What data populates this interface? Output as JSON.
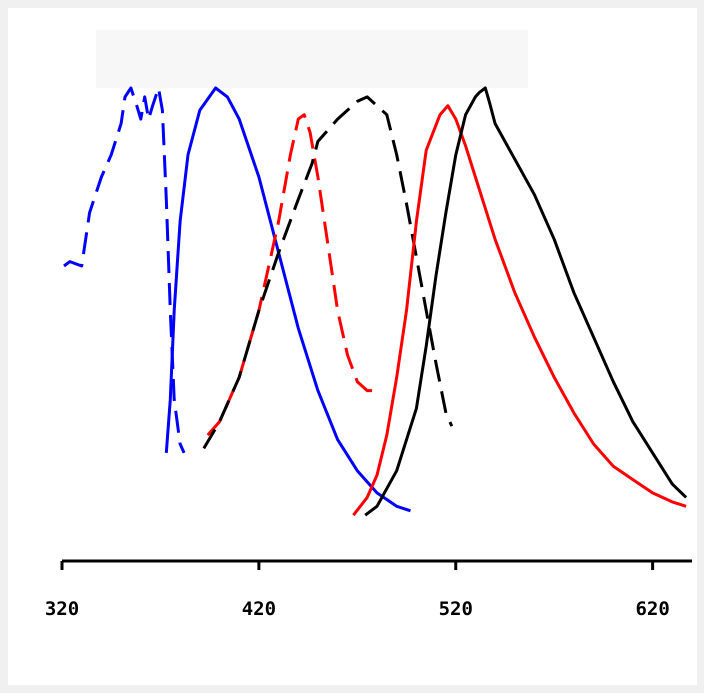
{
  "chart_data": {
    "type": "line",
    "title": "",
    "xlabel": "",
    "ylabel": "",
    "xlim": [
      320,
      640
    ],
    "ylim": [
      0,
      1
    ],
    "grid": false,
    "x_ticks": [
      320,
      420,
      520,
      620
    ],
    "series": [
      {
        "color": "#0000ff",
        "dashed": true,
        "points": [
          [
            321,
            0.6
          ],
          [
            324,
            0.61
          ],
          [
            330,
            0.6
          ],
          [
            334,
            0.72
          ],
          [
            340,
            0.8
          ],
          [
            345,
            0.85
          ],
          [
            350,
            0.92
          ],
          [
            352,
            0.98
          ],
          [
            355,
            1.0
          ],
          [
            358,
            0.96
          ],
          [
            360,
            0.93
          ],
          [
            362,
            0.98
          ],
          [
            364,
            0.93
          ],
          [
            366,
            0.96
          ],
          [
            369,
            1.0
          ],
          [
            371,
            0.95
          ],
          [
            373,
            0.75
          ],
          [
            375,
            0.5
          ],
          [
            377,
            0.3
          ],
          [
            380,
            0.2
          ],
          [
            382,
            0.18
          ]
        ]
      },
      {
        "color": "#0000ff",
        "dashed": false,
        "points": [
          [
            373,
            0.18
          ],
          [
            375,
            0.3
          ],
          [
            377,
            0.5
          ],
          [
            380,
            0.7
          ],
          [
            384,
            0.85
          ],
          [
            390,
            0.95
          ],
          [
            398,
            1.0
          ],
          [
            404,
            0.98
          ],
          [
            410,
            0.93
          ],
          [
            420,
            0.8
          ],
          [
            430,
            0.63
          ],
          [
            440,
            0.46
          ],
          [
            450,
            0.32
          ],
          [
            460,
            0.21
          ],
          [
            470,
            0.14
          ],
          [
            480,
            0.09
          ],
          [
            490,
            0.06
          ],
          [
            497,
            0.05
          ]
        ]
      },
      {
        "color": "#ff0000",
        "dashed": true,
        "points": [
          [
            394,
            0.22
          ],
          [
            400,
            0.25
          ],
          [
            410,
            0.35
          ],
          [
            420,
            0.5
          ],
          [
            430,
            0.7
          ],
          [
            436,
            0.85
          ],
          [
            440,
            0.93
          ],
          [
            443,
            0.94
          ],
          [
            446,
            0.9
          ],
          [
            450,
            0.8
          ],
          [
            455,
            0.65
          ],
          [
            460,
            0.5
          ],
          [
            465,
            0.4
          ],
          [
            470,
            0.34
          ],
          [
            475,
            0.32
          ],
          [
            482,
            0.32
          ]
        ]
      },
      {
        "color": "#000000",
        "dashed": true,
        "points": [
          [
            392,
            0.19
          ],
          [
            400,
            0.25
          ],
          [
            410,
            0.35
          ],
          [
            420,
            0.5
          ],
          [
            430,
            0.63
          ],
          [
            440,
            0.75
          ],
          [
            447,
            0.83
          ],
          [
            450,
            0.88
          ],
          [
            460,
            0.93
          ],
          [
            470,
            0.97
          ],
          [
            475,
            0.98
          ],
          [
            480,
            0.96
          ],
          [
            485,
            0.94
          ],
          [
            490,
            0.85
          ],
          [
            495,
            0.74
          ],
          [
            500,
            0.62
          ],
          [
            505,
            0.5
          ],
          [
            510,
            0.38
          ],
          [
            515,
            0.27
          ],
          [
            518,
            0.24
          ]
        ]
      },
      {
        "color": "#ff0000",
        "dashed": false,
        "points": [
          [
            468,
            0.04
          ],
          [
            475,
            0.08
          ],
          [
            480,
            0.13
          ],
          [
            485,
            0.22
          ],
          [
            490,
            0.35
          ],
          [
            495,
            0.5
          ],
          [
            500,
            0.7
          ],
          [
            505,
            0.86
          ],
          [
            512,
            0.94
          ],
          [
            516,
            0.96
          ],
          [
            520,
            0.93
          ],
          [
            525,
            0.87
          ],
          [
            530,
            0.8
          ],
          [
            540,
            0.66
          ],
          [
            550,
            0.54
          ],
          [
            560,
            0.44
          ],
          [
            570,
            0.35
          ],
          [
            580,
            0.27
          ],
          [
            590,
            0.2
          ],
          [
            600,
            0.15
          ],
          [
            610,
            0.12
          ],
          [
            620,
            0.09
          ],
          [
            630,
            0.07
          ],
          [
            637,
            0.06
          ]
        ]
      },
      {
        "color": "#000000",
        "dashed": false,
        "points": [
          [
            474,
            0.04
          ],
          [
            480,
            0.06
          ],
          [
            490,
            0.14
          ],
          [
            500,
            0.28
          ],
          [
            505,
            0.42
          ],
          [
            510,
            0.58
          ],
          [
            515,
            0.72
          ],
          [
            520,
            0.85
          ],
          [
            525,
            0.94
          ],
          [
            530,
            0.98
          ],
          [
            532,
            0.99
          ],
          [
            535,
            1.0
          ],
          [
            537,
            0.97
          ],
          [
            540,
            0.92
          ],
          [
            550,
            0.84
          ],
          [
            560,
            0.76
          ],
          [
            570,
            0.66
          ],
          [
            580,
            0.54
          ],
          [
            590,
            0.44
          ],
          [
            600,
            0.34
          ],
          [
            610,
            0.25
          ],
          [
            620,
            0.18
          ],
          [
            630,
            0.11
          ],
          [
            637,
            0.08
          ]
        ]
      }
    ]
  }
}
